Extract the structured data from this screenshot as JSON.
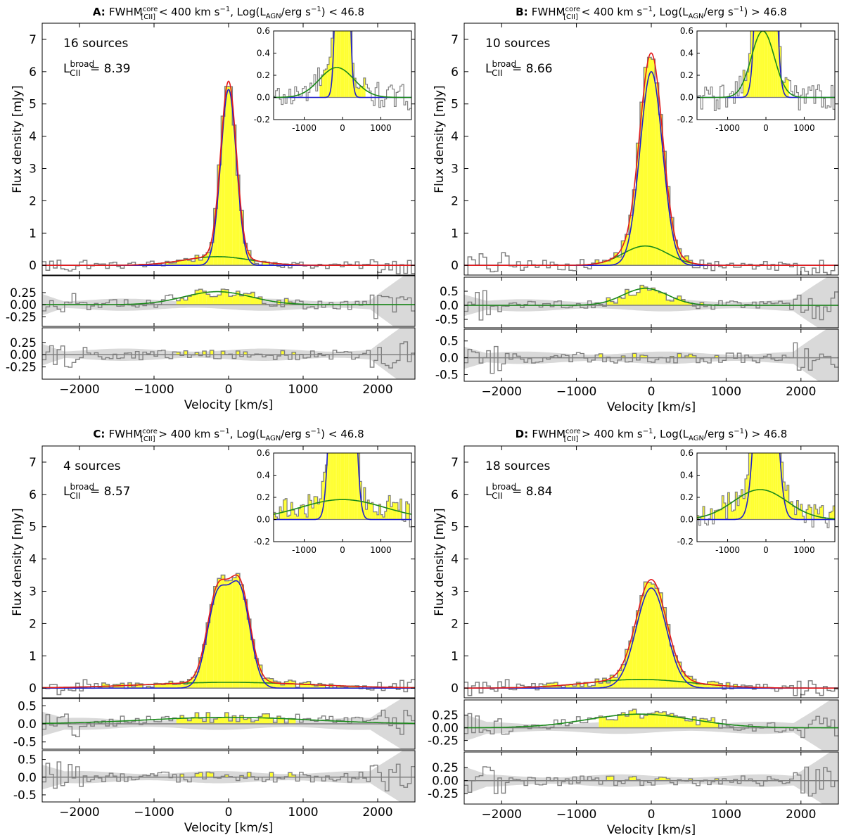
{
  "figure": {
    "panel_letter_suffix": ":",
    "ylabel": "Flux density [mJy]",
    "xlabel": "Velocity [km/s]",
    "fwhm_text": "FWHM",
    "fwhm_sup": "core",
    "fwhm_sub": "[CII]",
    "kms_text": " km s",
    "log_text": "Log(L",
    "agn_sub": "AGN",
    "log_unit": "/erg s",
    "lum_text": "L",
    "lum_sub": "CII",
    "lum_sup": "broad",
    "lum_eq": "="
  },
  "colors": {
    "fill": "#ffff33",
    "hist": "#808080",
    "total": "#e41a1c",
    "core": "#1f1fcc",
    "broad": "#1a8a1a",
    "band": "#d9d9d9"
  },
  "chart_data": [
    {
      "type": "line",
      "letter": "A",
      "cmp1": "<",
      "fwhm_val": "400",
      "cmp2": "<",
      "lagn_val": "46.8",
      "sources_text": "16 sources",
      "lum_value": "8.39",
      "xlim": [
        -2500,
        2500
      ],
      "ylim": [
        -0.3,
        7.5
      ],
      "xticks": [
        -2000,
        -1000,
        0,
        1000,
        2000
      ],
      "xticklabels": [
        "-2000",
        "-1000",
        "0",
        "1000",
        "2000"
      ],
      "yticks": [
        0,
        1,
        2,
        3,
        4,
        5,
        6,
        7
      ],
      "yticklabels": [
        "0",
        "1",
        "2",
        "3",
        "4",
        "5",
        "6",
        "7"
      ],
      "core": {
        "components": [
          {
            "amp": 5.45,
            "mu": 0,
            "sigma": 105
          }
        ]
      },
      "broad": {
        "amp": 0.27,
        "mu": -150,
        "sigma": 450
      },
      "residual1": {
        "ylim": [
          -0.45,
          0.6
        ],
        "yticks": [
          -0.25,
          0,
          0.25
        ],
        "yticklabels": [
          "-0.25",
          "0.00",
          "0.25"
        ]
      },
      "residual2": {
        "ylim": [
          -0.5,
          0.55
        ],
        "yticks": [
          -0.25,
          0,
          0.25
        ],
        "yticklabels": [
          "-0.25",
          "0.00",
          "0.25"
        ]
      },
      "inset": {
        "xlim": [
          -1800,
          1800
        ],
        "ylim": [
          -0.2,
          0.6
        ],
        "xticks": [
          -1000,
          0,
          1000
        ],
        "xticklabels": [
          "-1000",
          "0",
          "1000"
        ],
        "yticks": [
          -0.2,
          0,
          0.2,
          0.4,
          0.6
        ],
        "yticklabels": [
          "-0.2",
          "0.0",
          "0.2",
          "0.4",
          "0.6"
        ]
      }
    },
    {
      "type": "line",
      "letter": "B",
      "cmp1": "<",
      "fwhm_val": "400",
      "cmp2": ">",
      "lagn_val": "46.8",
      "sources_text": "10 sources",
      "lum_value": "8.66",
      "xlim": [
        -2500,
        2500
      ],
      "ylim": [
        -0.3,
        7.5
      ],
      "xticks": [
        -2000,
        -1000,
        0,
        1000,
        2000
      ],
      "xticklabels": [
        "-2000",
        "-1000",
        "0",
        "1000",
        "2000"
      ],
      "yticks": [
        0,
        1,
        2,
        3,
        4,
        5,
        6,
        7
      ],
      "yticklabels": [
        "0",
        "1",
        "2",
        "3",
        "4",
        "5",
        "6",
        "7"
      ],
      "core": {
        "components": [
          {
            "amp": 6.0,
            "mu": 0,
            "sigma": 150
          }
        ]
      },
      "broad": {
        "amp": 0.6,
        "mu": -80,
        "sigma": 300
      },
      "residual1": {
        "ylim": [
          -0.8,
          1.0
        ],
        "yticks": [
          -0.5,
          0,
          0.5
        ],
        "yticklabels": [
          "-0.5",
          "0.0",
          "0.5"
        ]
      },
      "residual2": {
        "ylim": [
          -0.7,
          0.85
        ],
        "yticks": [
          -0.5,
          0,
          0.5
        ],
        "yticklabels": [
          "-0.5",
          "0.0",
          "0.5"
        ]
      },
      "inset": {
        "xlim": [
          -1800,
          1800
        ],
        "ylim": [
          -0.2,
          0.6
        ],
        "xticks": [
          -1000,
          0,
          1000
        ],
        "xticklabels": [
          "-1000",
          "0",
          "1000"
        ],
        "yticks": [
          -0.2,
          0,
          0.2,
          0.4,
          0.6
        ],
        "yticklabels": [
          "-0.2",
          "0.0",
          "0.2",
          "0.4",
          "0.6"
        ]
      }
    },
    {
      "type": "line",
      "letter": "C",
      "cmp1": ">",
      "fwhm_val": "400",
      "cmp2": "<",
      "lagn_val": "46.8",
      "sources_text": "4 sources",
      "lum_value": "8.57",
      "xlim": [
        -2500,
        2500
      ],
      "ylim": [
        -0.3,
        7.5
      ],
      "xticks": [
        -2000,
        -1000,
        0,
        1000,
        2000
      ],
      "xticklabels": [
        "-2000",
        "-1000",
        "0",
        "1000",
        "2000"
      ],
      "yticks": [
        0,
        1,
        2,
        3,
        4,
        5,
        6,
        7
      ],
      "yticklabels": [
        "0",
        "1",
        "2",
        "3",
        "4",
        "5",
        "6",
        "7"
      ],
      "core": {
        "components": [
          {
            "amp": 2.75,
            "mu": -150,
            "sigma": 140
          },
          {
            "amp": 2.95,
            "mu": 150,
            "sigma": 140
          }
        ]
      },
      "broad": {
        "amp": 0.18,
        "mu": 0,
        "sigma": 1100
      },
      "residual1": {
        "ylim": [
          -0.7,
          0.7
        ],
        "yticks": [
          -0.5,
          0,
          0.5
        ],
        "yticklabels": [
          "-0.5",
          "0.0",
          "0.5"
        ]
      },
      "residual2": {
        "ylim": [
          -0.7,
          0.75
        ],
        "yticks": [
          -0.5,
          0,
          0.5
        ],
        "yticklabels": [
          "-0.5",
          "0.0",
          "0.5"
        ]
      },
      "inset": {
        "xlim": [
          -1800,
          1800
        ],
        "ylim": [
          -0.2,
          0.6
        ],
        "xticks": [
          -1000,
          0,
          1000
        ],
        "xticklabels": [
          "-1000",
          "0",
          "1000"
        ],
        "yticks": [
          -0.2,
          0,
          0.2,
          0.4,
          0.6
        ],
        "yticklabels": [
          "-0.2",
          "0.0",
          "0.2",
          "0.4",
          "0.6"
        ]
      }
    },
    {
      "type": "line",
      "letter": "D",
      "cmp1": ">",
      "fwhm_val": "400",
      "cmp2": ">",
      "lagn_val": "46.8",
      "sources_text": "18 sources",
      "lum_value": "8.84",
      "xlim": [
        -2500,
        2500
      ],
      "ylim": [
        -0.3,
        7.5
      ],
      "xticks": [
        -2000,
        -1000,
        0,
        1000,
        2000
      ],
      "xticklabels": [
        "-2000",
        "-1000",
        "0",
        "1000",
        "2000"
      ],
      "yticks": [
        0,
        1,
        2,
        3,
        4,
        5,
        6,
        7
      ],
      "yticklabels": [
        "0",
        "1",
        "2",
        "3",
        "4",
        "5",
        "6",
        "7"
      ],
      "core": {
        "components": [
          {
            "amp": 3.1,
            "mu": 0,
            "sigma": 200
          }
        ]
      },
      "broad": {
        "amp": 0.27,
        "mu": -150,
        "sigma": 700
      },
      "residual1": {
        "ylim": [
          -0.45,
          0.55
        ],
        "yticks": [
          -0.25,
          0,
          0.25
        ],
        "yticklabels": [
          "-0.25",
          "0.00",
          "0.25"
        ]
      },
      "residual2": {
        "ylim": [
          -0.45,
          0.55
        ],
        "yticks": [
          -0.25,
          0,
          0.25
        ],
        "yticklabels": [
          "-0.25",
          "0.00",
          "0.25"
        ]
      },
      "inset": {
        "xlim": [
          -1800,
          1800
        ],
        "ylim": [
          -0.2,
          0.6
        ],
        "xticks": [
          -1000,
          0,
          1000
        ],
        "xticklabels": [
          "-1000",
          "0",
          "1000"
        ],
        "yticks": [
          -0.2,
          0,
          0.2,
          0.4,
          0.6
        ],
        "yticklabels": [
          "-0.2",
          "0.0",
          "0.2",
          "0.4",
          "0.6"
        ]
      }
    }
  ]
}
